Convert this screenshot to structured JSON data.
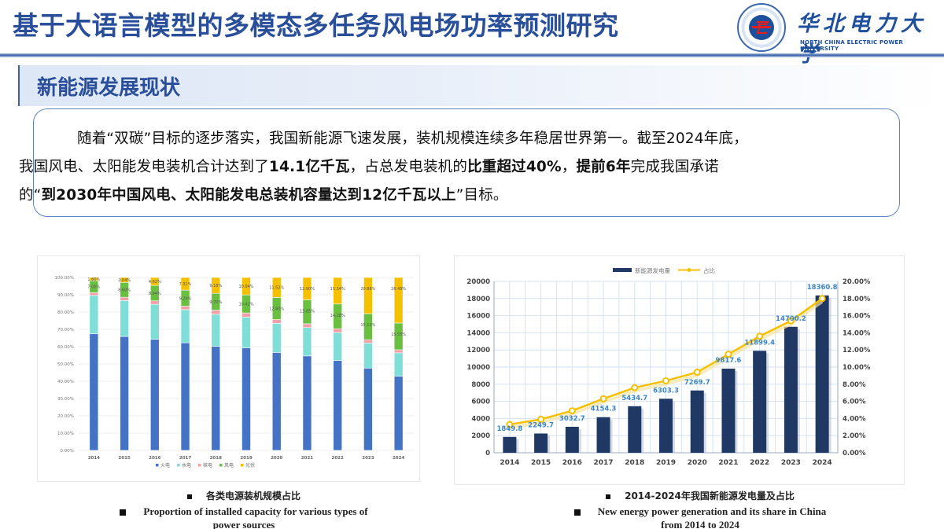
{
  "header": {
    "title": "基于大语言模型的多模态多任务风电场功率预测研究",
    "logo": {
      "icon": "university-seal-icon",
      "name_cn": "华北电力大学",
      "name_en": "NORTH CHINA ELECTRIC POWER UNIVERSITY"
    }
  },
  "section": {
    "title": "新能源发展现状"
  },
  "intro": {
    "line1": "随着“双碳”目标的逐步落实，我国新能源飞速发展，装机规模连续多年稳居世界第一。截至2024年底，",
    "line2_a": "我国风电、太阳能发电装机合计达到了",
    "line2_b": "14.1亿千瓦",
    "line2_c": "，占总发电装机的",
    "line2_d": "比重超过40%",
    "line2_e": "，",
    "line2_f": "提前6年",
    "line2_g": "完成我国承诺",
    "line3_a": "的“",
    "line3_b": "到2030年中国风电、太阳能发电总装机容量达到12亿千瓦以上",
    "line3_c": "”目标。"
  },
  "captions": {
    "left_cn": "各类电源装机规模占比",
    "left_en_1": "Proportion of installed capacity for various types of",
    "left_en_2": "power sources",
    "right_cn": "2014-2024年我国新能源发电量及占比",
    "right_en_1": "New energy power generation and its share in China",
    "right_en_2": "from 2014 to 2024"
  },
  "colors": {
    "title_blue": "#2a4f9a",
    "coal": "#4472c4",
    "hydro": "#7fded8",
    "nuclear": "#f2a0a8",
    "wind": "#6abf40",
    "solar": "#f5c000",
    "bar_navy": "#1f3864",
    "line_gold": "#f5c000",
    "label_blue": "#3b86c8"
  },
  "chart_data": [
    {
      "type": "bar",
      "stacked": true,
      "percent": true,
      "title": "各类电源装机规模占比",
      "categories": [
        "2014",
        "2015",
        "2016",
        "2017",
        "2018",
        "2019",
        "2020",
        "2021",
        "2022",
        "2023",
        "2024"
      ],
      "series": [
        {
          "name": "火电",
          "values": [
            67.4,
            65.9,
            64.3,
            62.2,
            60.2,
            59.2,
            56.6,
            54.6,
            52.0,
            47.6,
            43.1
          ]
        },
        {
          "name": "水电",
          "values": [
            22.2,
            20.8,
            20.2,
            19.2,
            18.5,
            17.7,
            16.8,
            16.4,
            16.1,
            14.5,
            13.6
          ]
        },
        {
          "name": "核电",
          "values": [
            1.6,
            1.9,
            2.0,
            2.0,
            2.4,
            2.4,
            2.2,
            2.2,
            2.2,
            1.9,
            1.8
          ]
        },
        {
          "name": "风电",
          "values": [
            7.0,
            8.6,
            8.9,
            9.29,
            9.7,
            10.42,
            12.8,
            13.85,
            14.28,
            15.12,
            15.55
          ]
        },
        {
          "name": "光伏",
          "values": [
            1.8,
            2.84,
            4.62,
            7.31,
            9.18,
            10.04,
            11.52,
            12.9,
            15.34,
            20.88,
            26.48
          ]
        }
      ],
      "data_labels": {
        "风电": [
          "7.00%",
          "8.60%",
          "8.94%",
          "9.29%",
          "9.70%",
          "10.42%",
          "12.80%",
          "13.85%",
          "14.28%",
          "15.12%",
          "15.55%"
        ],
        "光伏": [
          "1.80%",
          "2.84%",
          "4.62%",
          "7.31%",
          "9.18%",
          "10.04%",
          "11.52%",
          "12.90%",
          "15.34%",
          "20.88%",
          "26.48%"
        ]
      },
      "y_ticks": [
        "0.00%",
        "10.00%",
        "20.00%",
        "30.00%",
        "40.00%",
        "50.00%",
        "60.00%",
        "70.00%",
        "80.00%",
        "90.00%",
        "100.00%"
      ],
      "ylim": [
        0,
        100
      ],
      "legend": [
        "火电",
        "水电",
        "核电",
        "风电",
        "光伏"
      ],
      "legend_position": "bottom",
      "grid": true
    },
    {
      "type": "bar+line",
      "title": "2014-2024年我国新能源发电量及占比",
      "categories": [
        "2014",
        "2015",
        "2016",
        "2017",
        "2018",
        "2019",
        "2020",
        "2021",
        "2022",
        "2023",
        "2024"
      ],
      "series": [
        {
          "name": "新能源发电量",
          "type": "bar",
          "axis": "left",
          "values": [
            1849.8,
            2249.7,
            3032.7,
            4154.3,
            5434.7,
            6303.3,
            7269.7,
            9817.6,
            11899.4,
            14700.2,
            18360.8
          ],
          "labels": [
            "1849.8",
            "2249.7",
            "3032.7",
            "4154.3",
            "5434.7",
            "6303.3",
            "7269.7",
            "9817.6",
            "11899.4",
            "14700.2",
            "18360.8"
          ]
        },
        {
          "name": "占比",
          "type": "line",
          "axis": "right",
          "values": [
            3.3,
            3.9,
            4.9,
            6.3,
            7.6,
            8.4,
            9.4,
            11.5,
            13.6,
            15.4,
            18.0
          ]
        }
      ],
      "y_left_ticks": [
        "0",
        "2000",
        "4000",
        "6000",
        "8000",
        "10000",
        "12000",
        "14000",
        "16000",
        "18000",
        "20000"
      ],
      "y_right_ticks": [
        "0.00%",
        "2.00%",
        "4.00%",
        "6.00%",
        "8.00%",
        "10.00%",
        "12.00%",
        "14.00%",
        "16.00%",
        "18.00%",
        "20.00%"
      ],
      "ylim_left": [
        0,
        20000
      ],
      "ylim_right": [
        0,
        20
      ],
      "legend": [
        "新能源发电量",
        "占比"
      ],
      "legend_position": "top",
      "grid": true
    }
  ]
}
